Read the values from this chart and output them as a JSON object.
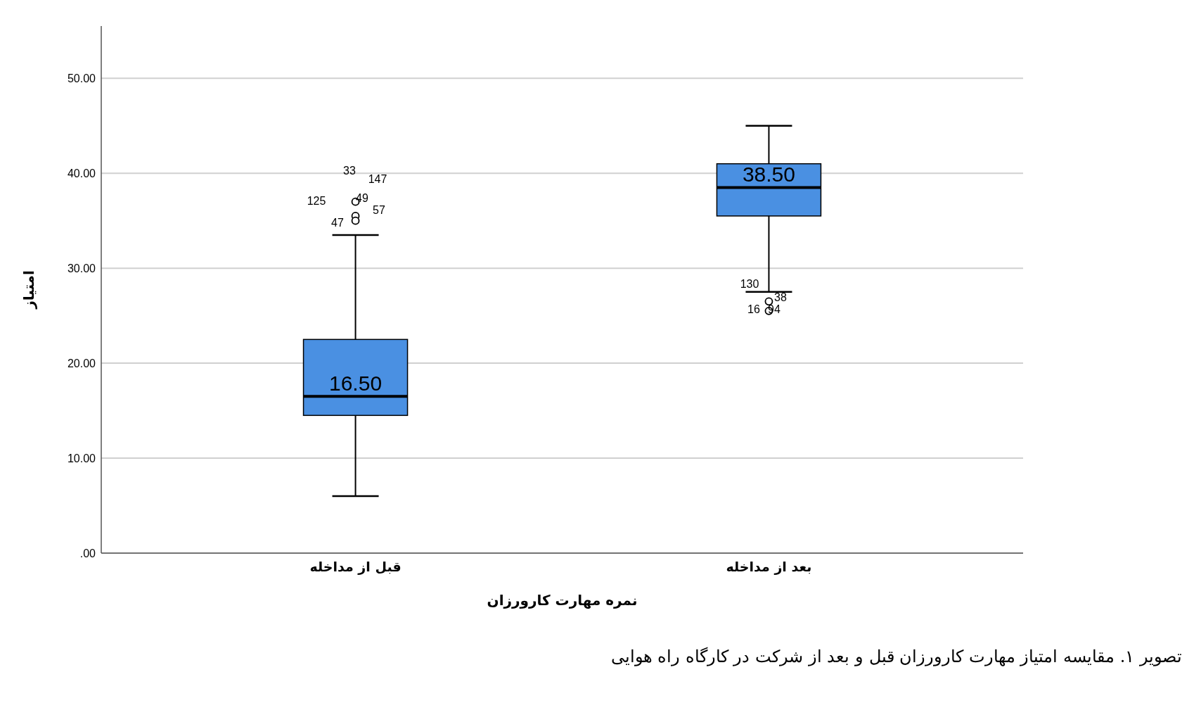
{
  "chart_data": {
    "type": "box",
    "xlabel": "نمره مهارت کارورزان",
    "ylabel": "امتیاز",
    "categories": [
      "قبل از مداخله",
      "بعد از مداخله"
    ],
    "color": "#4a90e2",
    "boxes": [
      {
        "low": 6,
        "q1": 14.5,
        "median": 16.5,
        "q3": 22.5,
        "high": 33.5,
        "outliers": [
          37,
          35.5,
          35
        ]
      },
      {
        "low": 27.5,
        "q1": 35.5,
        "median": 38.5,
        "q3": 41,
        "high": 45,
        "outliers": [
          26.5,
          25.5
        ]
      }
    ],
    "value_labels": [
      "16.50",
      "38.50"
    ],
    "ylim": [
      0,
      55.5
    ],
    "yticks": [
      {
        "value": 0,
        "label": ".00"
      },
      {
        "value": 10,
        "label": "10.00"
      },
      {
        "value": 20,
        "label": "20.00"
      },
      {
        "value": 30,
        "label": "30.00"
      },
      {
        "value": 40,
        "label": "40.00"
      },
      {
        "value": 50,
        "label": "50.00"
      }
    ],
    "grid": "y",
    "marker": "circle",
    "annotations": [
      "33",
      "147",
      "125",
      "49",
      "57",
      "47",
      "38",
      "130",
      "94",
      "16",
      "تصویر ۱. مقایسه امتیاز مهارت کارورزان قبل و بعد از شرکت در کارگاه راه هوایی"
    ]
  }
}
